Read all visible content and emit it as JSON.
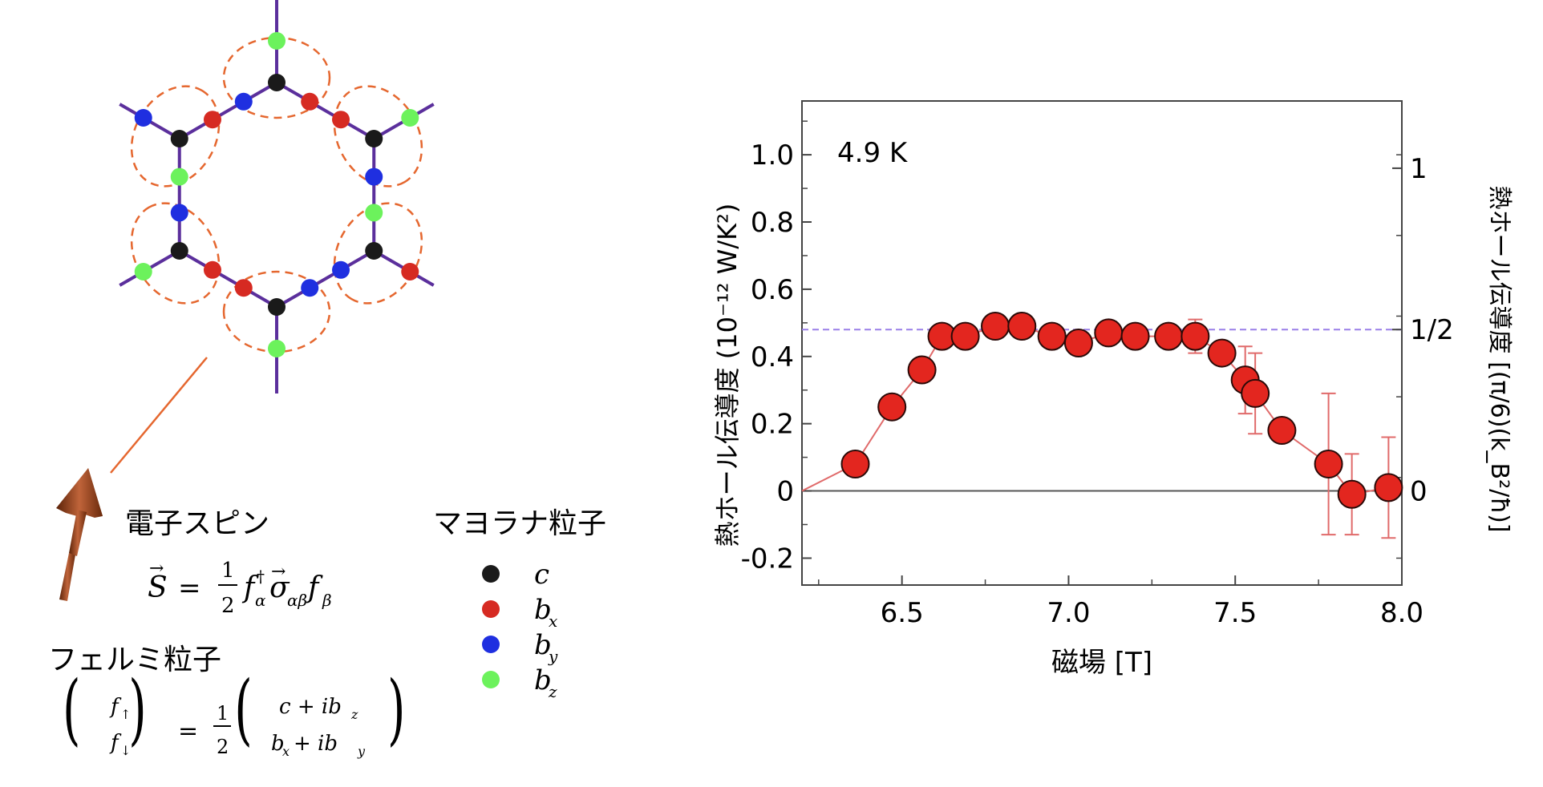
{
  "left": {
    "electron_spin_label": "電子スピン",
    "majorana_label": "マヨラナ粒子",
    "fermion_label": "フェルミ粒子",
    "legend": [
      {
        "name": "c",
        "sub": "",
        "color": "#1a1a1a"
      },
      {
        "name": "b",
        "sub": "x",
        "color": "#d62a22"
      },
      {
        "name": "b",
        "sub": "y",
        "color": "#1f2fe0"
      },
      {
        "name": "b",
        "sub": "z",
        "color": "#6cf25c"
      }
    ],
    "colors": {
      "bond": "#5b2f9c",
      "c": "#1a1a1a",
      "bx": "#d62a22",
      "by": "#1f2fe0",
      "bz": "#6cf25c",
      "ellipse": "#e5672f",
      "arrow": "#8b3a14"
    }
  },
  "chart_data": {
    "type": "scatter",
    "annotation": "4.9 K",
    "xlabel": "磁場 [T]",
    "ylabel": "熱ホール伝導度 (10⁻¹² W/K²)",
    "ylabel_right": "熱ホール伝導度 [(π/6)(k_B²/ħ)]",
    "xlim": [
      6.2,
      8.0
    ],
    "ylim": [
      -0.28,
      1.16
    ],
    "xticks": [
      6.5,
      7.0,
      7.5,
      8.0
    ],
    "xtick_labels": [
      "6.5",
      "7.0",
      "7.5",
      "8.0"
    ],
    "yticks": [
      1.0,
      0.8,
      0.6,
      0.4,
      0.2,
      0,
      -0.2
    ],
    "ytick_labels": [
      "1.0",
      "0.8",
      "0.6",
      "0.4",
      "0.2",
      "0",
      "-0.2"
    ],
    "right_ticks": [
      1.0,
      0.5,
      0
    ],
    "right_tick_labels": [
      "1",
      "1/2",
      "0"
    ],
    "half_quantized_line": 0.48,
    "zero_line": 0,
    "colors": {
      "marker": "#e3261f",
      "line": "#e06a6a",
      "dashed": "#9a7fe8",
      "axis": "#444444"
    },
    "x": [
      6.36,
      6.47,
      6.56,
      6.62,
      6.69,
      6.78,
      6.86,
      6.95,
      7.03,
      7.12,
      7.2,
      7.3,
      7.38,
      7.46,
      7.53,
      7.56,
      7.64,
      7.78,
      7.85,
      7.96
    ],
    "y": [
      0.08,
      0.25,
      0.36,
      0.46,
      0.46,
      0.49,
      0.49,
      0.46,
      0.44,
      0.47,
      0.46,
      0.46,
      0.46,
      0.41,
      0.33,
      0.29,
      0.18,
      0.08,
      -0.01,
      0.01
    ],
    "err": [
      0,
      0,
      0,
      0,
      0,
      0,
      0,
      0,
      0,
      0,
      0,
      0,
      0.05,
      0,
      0.1,
      0.12,
      0,
      0.21,
      0.12,
      0.15
    ],
    "origin": [
      6.2,
      0.0
    ]
  }
}
